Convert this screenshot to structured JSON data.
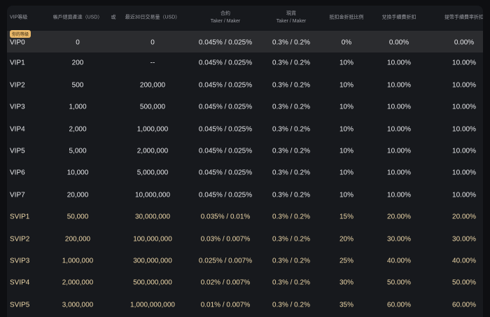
{
  "table": {
    "badge": "你的等級",
    "header": [
      {
        "title": "VIP等級"
      },
      {
        "title": "帳戶總資產達（USD）"
      },
      {
        "title": "或"
      },
      {
        "title": "最近30日交易量（USD）"
      },
      {
        "title": "合約",
        "sub": "Taker / Maker"
      },
      {
        "title": "現貨",
        "sub": "Taker / Maker"
      },
      {
        "title": "抵扣金折抵比例"
      },
      {
        "title": "兌換手續費折扣"
      },
      {
        "title": "提幣手續費率折扣"
      }
    ],
    "rows": [
      [
        "VIP0",
        "0",
        "0",
        "0.045% / 0.025%",
        "0.3% / 0.2%",
        "0%",
        "0.00%",
        "0.00%"
      ],
      [
        "VIP1",
        "200",
        "--",
        "0.045% / 0.025%",
        "0.3% / 0.2%",
        "10%",
        "10.00%",
        "10.00%"
      ],
      [
        "VIP2",
        "500",
        "200,000",
        "0.045% / 0.025%",
        "0.3% / 0.2%",
        "10%",
        "10.00%",
        "10.00%"
      ],
      [
        "VIP3",
        "1,000",
        "500,000",
        "0.045% / 0.025%",
        "0.3% / 0.2%",
        "10%",
        "10.00%",
        "10.00%"
      ],
      [
        "VIP4",
        "2,000",
        "1,000,000",
        "0.045% / 0.025%",
        "0.3% / 0.2%",
        "10%",
        "10.00%",
        "10.00%"
      ],
      [
        "VIP5",
        "5,000",
        "2,000,000",
        "0.045% / 0.025%",
        "0.3% / 0.2%",
        "10%",
        "10.00%",
        "10.00%"
      ],
      [
        "VIP6",
        "10,000",
        "5,000,000",
        "0.045% / 0.025%",
        "0.3% / 0.2%",
        "10%",
        "10.00%",
        "10.00%"
      ],
      [
        "VIP7",
        "20,000",
        "10,000,000",
        "0.045% / 0.025%",
        "0.3% / 0.2%",
        "10%",
        "10.00%",
        "10.00%"
      ],
      [
        "SVIP1",
        "50,000",
        "30,000,000",
        "0.035% / 0.01%",
        "0.3% / 0.2%",
        "15%",
        "20.00%",
        "20.00%"
      ],
      [
        "SVIP2",
        "200,000",
        "100,000,000",
        "0.03% / 0.007%",
        "0.3% / 0.2%",
        "20%",
        "30.00%",
        "30.00%"
      ],
      [
        "SVIP3",
        "1,000,000",
        "300,000,000",
        "0.025% / 0.007%",
        "0.3% / 0.2%",
        "25%",
        "40.00%",
        "40.00%"
      ],
      [
        "SVIP4",
        "2,000,000",
        "500,000,000",
        "0.02% / 0.007%",
        "0.3% / 0.2%",
        "30%",
        "50.00%",
        "50.00%"
      ],
      [
        "SVIP5",
        "3,000,000",
        "1,000,000,000",
        "0.01% / 0.007%",
        "0.3% / 0.2%",
        "35%",
        "60.00%",
        "60.00%"
      ]
    ]
  }
}
